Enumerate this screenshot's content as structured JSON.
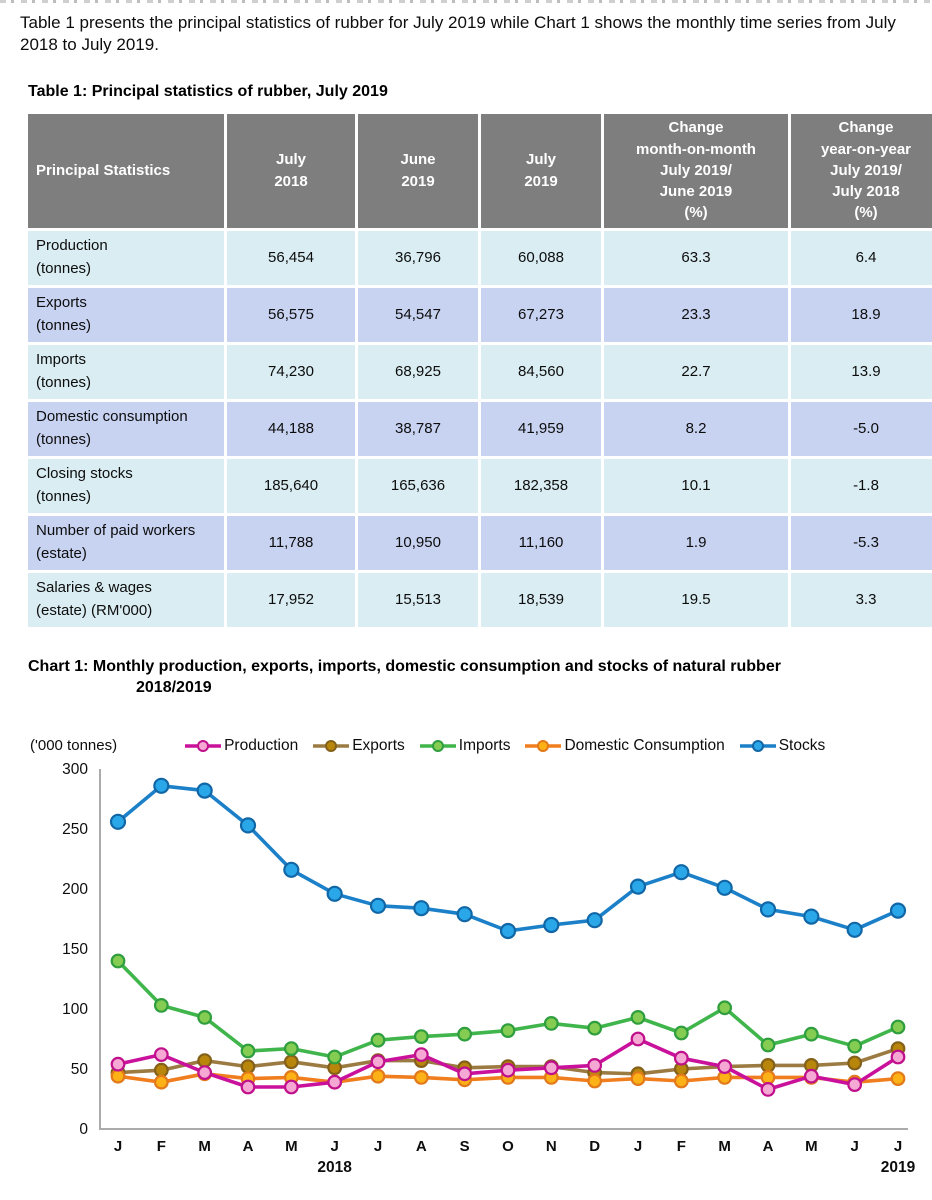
{
  "intro": {
    "text": "Table 1 presents the principal statistics of rubber for July 2019 while Chart 1 shows the monthly time series from July 2018 to July 2019."
  },
  "table": {
    "title": "Table 1: Principal statistics of rubber, July 2019",
    "columns": [
      [
        "Principal Statistics"
      ],
      [
        "July",
        "2018"
      ],
      [
        "June",
        "2019"
      ],
      [
        "July",
        "2019"
      ],
      [
        "Change",
        "month-on-month",
        "July 2019/",
        "June 2019",
        "(%)"
      ],
      [
        "Change",
        "year-on-year",
        "July 2019/",
        "July 2018",
        "(%)"
      ]
    ],
    "rows": [
      {
        "label": "Production",
        "sub": "(tonnes)",
        "values": [
          "56,454",
          "36,796",
          "60,088",
          "63.3",
          "6.4"
        ]
      },
      {
        "label": "Exports",
        "sub": "(tonnes)",
        "values": [
          "56,575",
          "54,547",
          "67,273",
          "23.3",
          "18.9"
        ]
      },
      {
        "label": "Imports",
        "sub": "(tonnes)",
        "values": [
          "74,230",
          "68,925",
          "84,560",
          "22.7",
          "13.9"
        ]
      },
      {
        "label": "Domestic consumption",
        "sub": "(tonnes)",
        "values": [
          "44,188",
          "38,787",
          "41,959",
          "8.2",
          "-5.0"
        ]
      },
      {
        "label": "Closing stocks",
        "sub": "(tonnes)",
        "values": [
          "185,640",
          "165,636",
          "182,358",
          "10.1",
          "-1.8"
        ]
      },
      {
        "label": "Number of paid workers",
        "sub": "(estate)",
        "values": [
          "11,788",
          "10,950",
          "11,160",
          "1.9",
          "-5.3"
        ]
      },
      {
        "label": "Salaries & wages",
        "sub": "(estate) (RM'000)",
        "values": [
          "17,952",
          "15,513",
          "18,539",
          "19.5",
          "3.3"
        ]
      }
    ]
  },
  "chart": {
    "title_line1": "Chart 1: Monthly production, exports, imports, domestic consumption and stocks of natural rubber",
    "title_line2": "2018/2019",
    "unit_label": "('000 tonnes)"
  },
  "chart_data": {
    "type": "line",
    "title": "Monthly production, exports, imports, domestic consumption and stocks of natural rubber 2018/2019",
    "ylabel": "('000 tonnes)",
    "ylim": [
      0,
      300
    ],
    "yticks": [
      0,
      50,
      100,
      150,
      200,
      250,
      300
    ],
    "grid": false,
    "legend_position": "top",
    "categories": [
      "J",
      "F",
      "M",
      "A",
      "M",
      "J",
      "J",
      "A",
      "S",
      "O",
      "N",
      "D",
      "J",
      "F",
      "M",
      "A",
      "M",
      "J",
      "J"
    ],
    "year_labels": [
      {
        "label": "2018",
        "month_index": 5
      },
      {
        "label": "2019",
        "month_index": 18
      }
    ],
    "series": [
      {
        "name": "Production",
        "color": "#c9119c",
        "marker_fill": "#f5a8d3",
        "marker_stroke": "#c0108c",
        "values": [
          54,
          62,
          47,
          35,
          35,
          39,
          56,
          62,
          46,
          49,
          51,
          53,
          75,
          59,
          52,
          33,
          44,
          37,
          60
        ]
      },
      {
        "name": "Exports",
        "color": "#9c7b42",
        "marker_fill": "#b8860b",
        "marker_stroke": "#84611a",
        "values": [
          47,
          49,
          57,
          52,
          56,
          51,
          57,
          57,
          51,
          52,
          52,
          47,
          46,
          50,
          52,
          53,
          53,
          55,
          67
        ]
      },
      {
        "name": "Imports",
        "color": "#3fb54b",
        "marker_fill": "#84cd52",
        "marker_stroke": "#2f9e3e",
        "values": [
          140,
          103,
          93,
          65,
          67,
          60,
          74,
          77,
          79,
          82,
          88,
          84,
          93,
          80,
          101,
          70,
          79,
          69,
          85
        ]
      },
      {
        "name": "Domestic Consumption",
        "color": "#f07e1e",
        "marker_fill": "#fcb117",
        "marker_stroke": "#e2791a",
        "values": [
          44,
          39,
          46,
          42,
          43,
          39,
          44,
          43,
          41,
          43,
          43,
          40,
          42,
          40,
          43,
          43,
          43,
          39,
          42
        ]
      },
      {
        "name": "Stocks",
        "color": "#1b80c8",
        "marker_fill": "#2aa7e8",
        "marker_stroke": "#1166a6",
        "values": [
          256,
          286,
          282,
          253,
          216,
          196,
          186,
          184,
          179,
          165,
          170,
          174,
          202,
          214,
          201,
          183,
          177,
          166,
          182
        ]
      }
    ]
  }
}
